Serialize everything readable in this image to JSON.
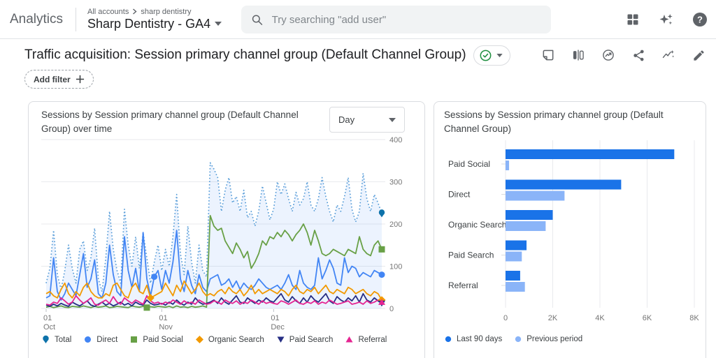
{
  "header": {
    "logo": "Analytics",
    "breadcrumb_account": "All accounts",
    "breadcrumb_separator": "›",
    "breadcrumb_item": "sharp dentistry",
    "property_name": "Sharp Dentistry - GA4",
    "search_placeholder": "Try searching \"add user\"",
    "icons": [
      "apps-grid",
      "gemini-sparkle",
      "help"
    ]
  },
  "report": {
    "title": "Traffic acquisition: Session primary channel group (Default Channel Group)",
    "verified_badge": "checkmark",
    "toolbar_icons": [
      "notes",
      "comparison",
      "insights",
      "share",
      "trend-insights",
      "edit"
    ],
    "add_filter_label": "Add filter"
  },
  "charts": {
    "left": {
      "title": "Sessions by Session primary channel group (Default Channel Group) over time",
      "interval_value": "Day"
    },
    "right": {
      "title": "Sessions by Session primary channel group (Default Channel Group)"
    }
  },
  "chart_data": [
    {
      "type": "line",
      "title": "Sessions by Session primary channel group (Default Channel Group) over time",
      "interval": "Day",
      "ylim": [
        0,
        400
      ],
      "yticks": [
        0,
        100,
        200,
        300,
        400
      ],
      "x_ticks": [
        {
          "index": 0,
          "line1": "01",
          "line2": "Oct"
        },
        {
          "index": 31,
          "line1": "01",
          "line2": "Nov"
        },
        {
          "index": 61,
          "line1": "01",
          "line2": "Dec"
        }
      ],
      "grid": true,
      "legend_position": "bottom",
      "area_fill_color": "rgba(66,133,244,0.10)",
      "series": [
        {
          "name": "Total",
          "color": "#0d72aa",
          "line_color": "#549bd7",
          "dashed": true,
          "fill": true,
          "marker": "spade",
          "end_marker": true,
          "mid_marker_index": null,
          "values": [
            60,
            95,
            185,
            80,
            45,
            90,
            150,
            95,
            60,
            140,
            160,
            90,
            120,
            190,
            70,
            40,
            120,
            230,
            140,
            90,
            60,
            235,
            150,
            100,
            170,
            95,
            180,
            120,
            60,
            110,
            150,
            90,
            140,
            100,
            170,
            270,
            130,
            80,
            195,
            110,
            60,
            150,
            90,
            75,
            345,
            330,
            310,
            230,
            280,
            310,
            250,
            265,
            230,
            280,
            215,
            230,
            195,
            230,
            290,
            250,
            210,
            235,
            300,
            270,
            295,
            260,
            230,
            275,
            245,
            260,
            300,
            245,
            230,
            260,
            310,
            265,
            230,
            205,
            245,
            230,
            265,
            310,
            235,
            205,
            230,
            320,
            260,
            230,
            270,
            250,
            225
          ]
        },
        {
          "name": "Direct",
          "color": "#4285f4",
          "dashed": false,
          "fill": false,
          "marker": "circle",
          "end_marker": true,
          "mid_marker_index": 29,
          "values": [
            25,
            30,
            120,
            40,
            20,
            35,
            60,
            45,
            30,
            80,
            130,
            50,
            70,
            115,
            35,
            25,
            60,
            150,
            80,
            40,
            30,
            170,
            90,
            50,
            95,
            40,
            180,
            70,
            30,
            75,
            90,
            45,
            90,
            60,
            110,
            185,
            70,
            40,
            90,
            55,
            35,
            80,
            50,
            40,
            70,
            75,
            80,
            55,
            60,
            70,
            50,
            65,
            45,
            60,
            50,
            45,
            55,
            70,
            60,
            50,
            45,
            50,
            55,
            45,
            60,
            80,
            55,
            45,
            90,
            60,
            50,
            45,
            55,
            120,
            70,
            90,
            115,
            95,
            60,
            55,
            120,
            85,
            100,
            95,
            75,
            85,
            80,
            75,
            90,
            85,
            80
          ]
        },
        {
          "name": "Paid Social",
          "color": "#68a046",
          "dashed": false,
          "fill": false,
          "marker": "square",
          "end_marker": true,
          "mid_marker_index": 27,
          "values": [
            3,
            5,
            2,
            4,
            6,
            3,
            2,
            5,
            4,
            3,
            6,
            4,
            2,
            5,
            3,
            4,
            6,
            2,
            3,
            5,
            4,
            3,
            2,
            6,
            4,
            3,
            5,
            2,
            4,
            3,
            5,
            4,
            3,
            5,
            2,
            6,
            3,
            4,
            2,
            5,
            3,
            4,
            6,
            3,
            220,
            195,
            185,
            190,
            160,
            145,
            130,
            155,
            140,
            120,
            135,
            95,
            110,
            130,
            160,
            150,
            170,
            165,
            180,
            170,
            185,
            175,
            160,
            175,
            185,
            200,
            180,
            150,
            185,
            160,
            130,
            125,
            130,
            140,
            135,
            130,
            125,
            140,
            135,
            130,
            170,
            140,
            130,
            125,
            150,
            160,
            140
          ]
        },
        {
          "name": "Organic Search",
          "color": "#f29900",
          "dashed": false,
          "fill": false,
          "marker": "diamond",
          "end_marker": true,
          "mid_marker_index": 28,
          "values": [
            35,
            40,
            30,
            25,
            45,
            60,
            35,
            25,
            40,
            30,
            50,
            60,
            40,
            30,
            25,
            25,
            35,
            30,
            55,
            60,
            45,
            30,
            25,
            50,
            60,
            40,
            35,
            55,
            25,
            30,
            35,
            40,
            60,
            45,
            30,
            55,
            40,
            65,
            50,
            35,
            45,
            60,
            40,
            30,
            35,
            30,
            40,
            45,
            35,
            50,
            40,
            35,
            45,
            30,
            40,
            55,
            35,
            45,
            35,
            40,
            45,
            40,
            35,
            45,
            40,
            30,
            45,
            55,
            40,
            35,
            45,
            40,
            50,
            35,
            45,
            55,
            40,
            35,
            45,
            40,
            35,
            50,
            45,
            35,
            40,
            45,
            35,
            30,
            40,
            35,
            20
          ]
        },
        {
          "name": "Paid Search",
          "color": "#262e84",
          "dashed": false,
          "fill": false,
          "marker": "triangle-down",
          "end_marker": true,
          "mid_marker_index": null,
          "values": [
            8,
            5,
            10,
            6,
            12,
            8,
            5,
            15,
            10,
            6,
            12,
            18,
            8,
            5,
            10,
            15,
            8,
            12,
            6,
            10,
            15,
            8,
            12,
            6,
            15,
            10,
            8,
            20,
            12,
            8,
            10,
            12,
            8,
            15,
            10,
            20,
            12,
            8,
            15,
            10,
            25,
            15,
            10,
            12,
            15,
            20,
            12,
            25,
            15,
            10,
            20,
            30,
            15,
            12,
            25,
            18,
            12,
            20,
            15,
            25,
            18,
            15,
            25,
            35,
            20,
            15,
            28,
            18,
            12,
            25,
            15,
            30,
            20,
            15,
            25,
            35,
            18,
            12,
            28,
            20,
            15,
            25,
            18,
            30,
            15,
            35,
            20,
            15,
            25,
            18,
            12
          ]
        },
        {
          "name": "Referral",
          "color": "#e52592",
          "dashed": false,
          "fill": false,
          "marker": "triangle-up",
          "end_marker": true,
          "mid_marker_index": null,
          "values": [
            10,
            8,
            15,
            12,
            25,
            18,
            10,
            15,
            30,
            20,
            12,
            18,
            25,
            10,
            8,
            15,
            20,
            12,
            28,
            15,
            10,
            25,
            18,
            12,
            20,
            15,
            10,
            30,
            18,
            12,
            15,
            10,
            15,
            12,
            20,
            15,
            10,
            18,
            12,
            15,
            10,
            20,
            15,
            10,
            12,
            18,
            15,
            10,
            20,
            15,
            12,
            18,
            10,
            15,
            12,
            20,
            15,
            10,
            18,
            12,
            15,
            12,
            10,
            18,
            15,
            10,
            15,
            20,
            12,
            10,
            15,
            12,
            18,
            10,
            15,
            12,
            20,
            15,
            10,
            12,
            15,
            18,
            10,
            12,
            15,
            10,
            18,
            12,
            15,
            20,
            15
          ]
        }
      ]
    },
    {
      "type": "bar",
      "orientation": "horizontal",
      "title": "Sessions by Session primary channel group (Default Channel Group)",
      "categories": [
        "Paid Social",
        "Direct",
        "Organic Search",
        "Paid Search",
        "Referral"
      ],
      "series": [
        {
          "name": "Last 90 days",
          "color": "#1a73e8",
          "values": [
            7150,
            4900,
            2000,
            890,
            620
          ]
        },
        {
          "name": "Previous period",
          "color": "#8ab4f8",
          "values": [
            150,
            2500,
            1700,
            690,
            820
          ]
        }
      ],
      "xlim": [
        0,
        8000
      ],
      "x_ticks": [
        {
          "value": 0,
          "label": "0"
        },
        {
          "value": 2000,
          "label": "2K"
        },
        {
          "value": 4000,
          "label": "4K"
        },
        {
          "value": 6000,
          "label": "6K"
        },
        {
          "value": 8000,
          "label": "8K"
        }
      ],
      "grid": true,
      "legend_position": "bottom"
    }
  ],
  "colors": {
    "bar_primary": "#1a73e8",
    "bar_secondary": "#8ab4f8",
    "verified_green": "#1e8e3e",
    "icon_gray": "#5f6368",
    "axis_text": "#757575",
    "gridline": "#e8eaed"
  }
}
